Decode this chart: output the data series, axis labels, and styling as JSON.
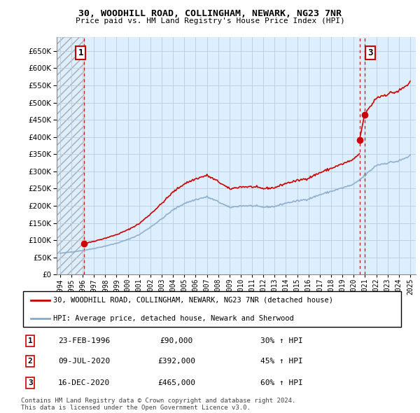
{
  "title": "30, WOODHILL ROAD, COLLINGHAM, NEWARK, NG23 7NR",
  "subtitle": "Price paid vs. HM Land Registry's House Price Index (HPI)",
  "ylabel_ticks": [
    0,
    50000,
    100000,
    150000,
    200000,
    250000,
    300000,
    350000,
    400000,
    450000,
    500000,
    550000,
    600000,
    650000
  ],
  "ylabel_labels": [
    "£0",
    "£50K",
    "£100K",
    "£150K",
    "£200K",
    "£250K",
    "£300K",
    "£350K",
    "£400K",
    "£450K",
    "£500K",
    "£550K",
    "£600K",
    "£650K"
  ],
  "xlim_start": 1993.7,
  "xlim_end": 2025.5,
  "ylim": [
    0,
    690000
  ],
  "sale_dates": [
    1996.13,
    2020.52,
    2020.96
  ],
  "sale_prices": [
    90000,
    392000,
    465000
  ],
  "red_line_color": "#cc0000",
  "blue_line_color": "#88aacc",
  "dot_color": "#cc0000",
  "vline_color": "#cc0000",
  "bg_color": "#ddeeff",
  "grid_color": "#bbccdd",
  "legend_items": [
    "30, WOODHILL ROAD, COLLINGHAM, NEWARK, NG23 7NR (detached house)",
    "HPI: Average price, detached house, Newark and Sherwood"
  ],
  "table_rows": [
    [
      "1",
      "23-FEB-1996",
      "£90,000",
      "30% ↑ HPI"
    ],
    [
      "2",
      "09-JUL-2020",
      "£392,000",
      "45% ↑ HPI"
    ],
    [
      "3",
      "16-DEC-2020",
      "£465,000",
      "60% ↑ HPI"
    ]
  ],
  "footnote": "Contains HM Land Registry data © Crown copyright and database right 2024.\nThis data is licensed under the Open Government Licence v3.0."
}
